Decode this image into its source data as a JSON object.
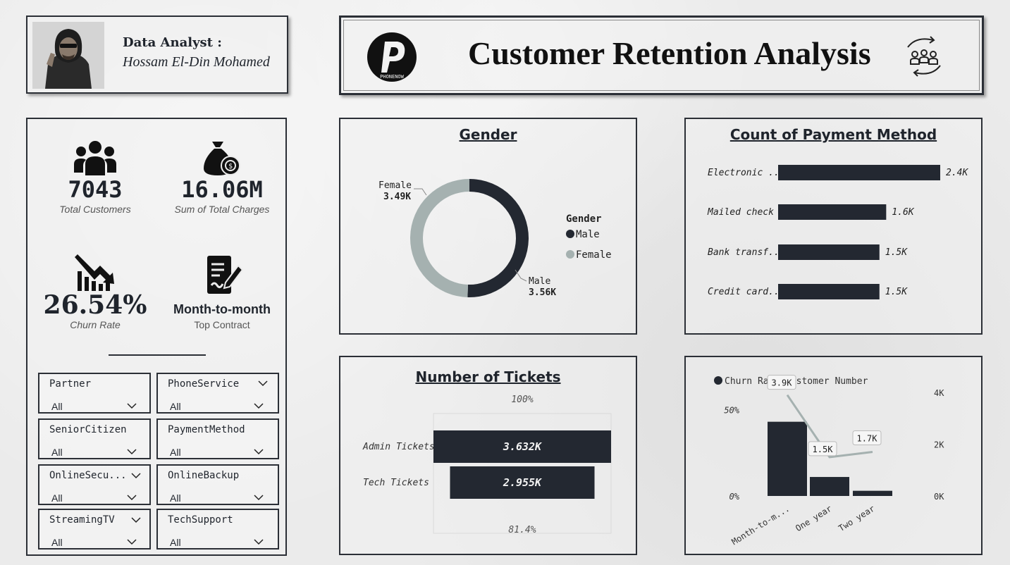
{
  "analyst": {
    "role": "Data Analyst :",
    "name": "Hossam El-Din Mohamed"
  },
  "header": {
    "title": "Customer Retention Analysis",
    "logo_icon": "phonenow-logo-icon",
    "logo_text": "PHONENOW"
  },
  "kpis": {
    "total_customers": {
      "value": "7043",
      "label": "Total Customers",
      "icon": "users-icon"
    },
    "total_charges": {
      "value": "16.06M",
      "label": "Sum of Total Charges",
      "icon": "money-bag-icon"
    },
    "churn_rate": {
      "value": "26.54%",
      "label": "Churn Rate",
      "icon": "trend-down-icon"
    },
    "top_contract": {
      "value": "Month-to-month",
      "label": "Top Contract",
      "icon": "contract-icon"
    }
  },
  "slicers": [
    {
      "label": "Partner",
      "value": "All"
    },
    {
      "label": "PhoneService",
      "value": "All"
    },
    {
      "label": "SeniorCitizen",
      "value": "All"
    },
    {
      "label": "PaymentMethod",
      "value": "All"
    },
    {
      "label": "OnlineSecu...",
      "value": "All"
    },
    {
      "label": "OnlineBackup",
      "value": "All"
    },
    {
      "label": "StreamingTV",
      "value": "All"
    },
    {
      "label": "TechSupport",
      "value": "All"
    }
  ],
  "colors": {
    "dark": "#232831",
    "light": "#a5b1b0"
  },
  "chart_data": [
    {
      "type": "pie",
      "title": "Gender",
      "legend_title": "Gender",
      "legend_placement": "right",
      "categories": [
        "Male",
        "Female"
      ],
      "values": [
        3.56,
        3.49
      ],
      "labels": [
        "3.56K",
        "3.49K"
      ],
      "colors": [
        "#232831",
        "#a5b1b0"
      ]
    },
    {
      "type": "bar",
      "orientation": "horizontal",
      "title": "Count of Payment Method",
      "categories": [
        "Electronic ...",
        "Mailed check",
        "Bank transf...",
        "Credit card..."
      ],
      "values": [
        2.4,
        1.6,
        1.5,
        1.5
      ],
      "labels": [
        "2.4K",
        "1.6K",
        "1.5K",
        "1.5K"
      ]
    },
    {
      "type": "bar",
      "subtype": "funnel",
      "title": "Number of Tickets",
      "categories": [
        "Admin Tickets",
        "Tech Tickets"
      ],
      "values": [
        3.632,
        2.955
      ],
      "labels": [
        "3.632K",
        "2.955K"
      ],
      "top_label": "100%",
      "bottom_label": "81.4%"
    },
    {
      "type": "bar",
      "subtype": "bar-line-combo",
      "title": "",
      "legend_placement": "top-left",
      "categories": [
        "Month-to-m...",
        "One year",
        "Two year"
      ],
      "series": [
        {
          "name": "Churn Rate",
          "kind": "bar",
          "axis": "left",
          "values": [
            43,
            11,
            3
          ],
          "color": "#232831"
        },
        {
          "name": "Customer Number",
          "kind": "line",
          "axis": "right",
          "values": [
            3.9,
            1.5,
            1.7
          ],
          "labels": [
            "3.9K",
            "1.5K",
            "1.7K"
          ],
          "color": "#a5b1b0"
        }
      ],
      "left_axis": {
        "ticks": [
          "0%",
          "50%"
        ],
        "range": [
          0,
          60
        ]
      },
      "right_axis": {
        "ticks": [
          "0K",
          "2K",
          "4K"
        ],
        "range": [
          0,
          4
        ]
      }
    }
  ]
}
